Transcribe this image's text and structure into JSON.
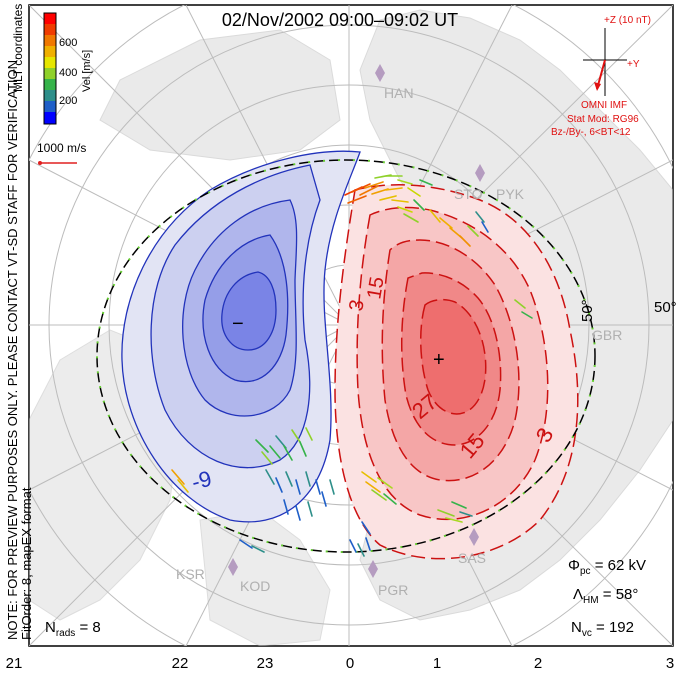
{
  "header": {
    "title": "02/Nov/2002 09:00–09:02 UT"
  },
  "side_note": "NOTE: FOR PREVIEW PURPOSES ONLY. PLEASE CONTACT VT-SD STAFF FOR VERIFICATION.",
  "side_fit": "FitOrder: 8, mapEX format",
  "colorbar": {
    "label": "Vel [m/s]",
    "coord_label": "MLT coordinates",
    "ticks": [
      "600",
      "400",
      "200"
    ],
    "colors": [
      "#0000ff",
      "#1f5fc8",
      "#2e8f8a",
      "#36b34a",
      "#8fd12a",
      "#e6e600",
      "#f0b000",
      "#f07800",
      "#f03c00",
      "#ff0000"
    ]
  },
  "scale_vector": {
    "label": "1000 m/s",
    "color": "#e02020"
  },
  "imf": {
    "z_label": "+Z (10 nT)",
    "y_label": "+Y",
    "source": "OMNI IMF",
    "model": "Stat Mod: RG96",
    "condition": "Bz-/By-, 6<BT<12",
    "color": "#e01010"
  },
  "latitude_labels": [
    "50°",
    "50°"
  ],
  "stations": [
    "HAN",
    "STO",
    "PYK",
    "GBR",
    "SAS",
    "PGR",
    "KOD",
    "KSR"
  ],
  "contours": {
    "negative_labels": [
      "-9",
      "−"
    ],
    "positive_labels": [
      "3",
      "15",
      "27",
      "15",
      "3",
      "+"
    ]
  },
  "stats": {
    "phi_sym": "Φ",
    "phi_sub": "pc",
    "phi_val": " = 62 kV",
    "lambda_sym": "Λ",
    "lambda_sub": "HM",
    "lambda_val": " = 58°",
    "nvc_sym": "N",
    "nvc_sub": "vc",
    "nvc_val": " = 192",
    "nrads_sym": "N",
    "nrads_sub": "rads",
    "nrads_val": " = 8"
  },
  "mlt_axis": [
    "21",
    "22",
    "23",
    "0",
    "1",
    "2",
    "3"
  ],
  "colors": {
    "dusk_cell": "#3344dd",
    "dawn_cell": "#dd2222",
    "grid": "#b8b8b8",
    "land": "#d8d8d8",
    "boundary_green": "#66cc33"
  }
}
